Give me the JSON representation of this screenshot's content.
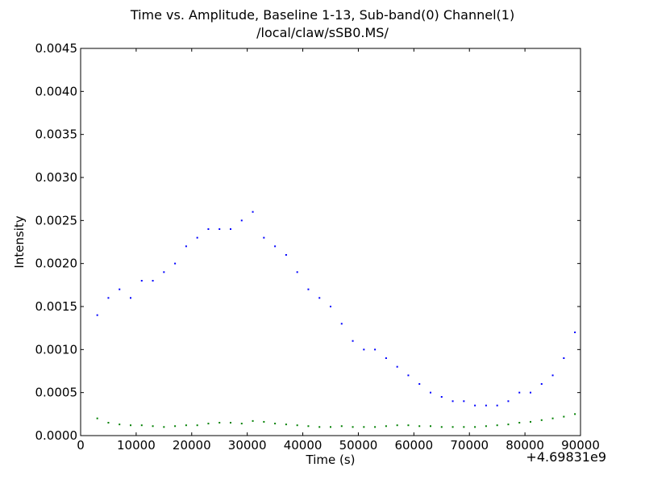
{
  "chart_data": {
    "type": "scatter",
    "title": "Time vs. Amplitude, Baseline 1-13, Sub-band(0)  Channel(1)",
    "subtitle": "/local/claw/sSB0.MS/",
    "xlabel": "Time (s)",
    "ylabel": "Intensity",
    "x_offset_label": "+4.69831e9",
    "xlim": [
      0,
      90000
    ],
    "ylim": [
      0,
      0.0045
    ],
    "x_ticks": [
      "0",
      "10000",
      "20000",
      "30000",
      "40000",
      "50000",
      "60000",
      "70000",
      "80000",
      "90000"
    ],
    "y_ticks": [
      "0.0000",
      "0.0005",
      "0.0010",
      "0.0015",
      "0.0020",
      "0.0025",
      "0.0030",
      "0.0035",
      "0.0040",
      "0.0045"
    ],
    "grid": false,
    "series": [
      {
        "color": "#0000ff",
        "x": [
          3000,
          5000,
          7000,
          9000,
          11000,
          13000,
          15000,
          17000,
          19000,
          21000,
          23000,
          25000,
          27000,
          29000,
          31000,
          33000,
          35000,
          37000,
          39000,
          41000,
          43000,
          45000,
          47000,
          49000,
          51000,
          53000,
          55000,
          57000,
          59000,
          61000,
          63000,
          65000,
          67000,
          69000,
          71000,
          73000,
          75000,
          77000,
          79000,
          81000,
          83000,
          85000,
          87000,
          89000
        ],
        "y": [
          0.0014,
          0.0016,
          0.0017,
          0.0016,
          0.0018,
          0.0018,
          0.0019,
          0.002,
          0.0022,
          0.0023,
          0.0024,
          0.0024,
          0.0024,
          0.0025,
          0.0026,
          0.0023,
          0.0022,
          0.0021,
          0.0019,
          0.0017,
          0.0016,
          0.0015,
          0.0013,
          0.0011,
          0.001,
          0.001,
          0.0009,
          0.0008,
          0.0007,
          0.0006,
          0.0005,
          0.00045,
          0.0004,
          0.0004,
          0.00035,
          0.00035,
          0.00035,
          0.0004,
          0.0005,
          0.0005,
          0.0006,
          0.0007,
          0.0009,
          0.0012
        ]
      },
      {
        "color": "#008000",
        "x": [
          3000,
          5000,
          7000,
          9000,
          11000,
          13000,
          15000,
          17000,
          19000,
          21000,
          23000,
          25000,
          27000,
          29000,
          31000,
          33000,
          35000,
          37000,
          39000,
          41000,
          43000,
          45000,
          47000,
          49000,
          51000,
          53000,
          55000,
          57000,
          59000,
          61000,
          63000,
          65000,
          67000,
          69000,
          71000,
          73000,
          75000,
          77000,
          79000,
          81000,
          83000,
          85000,
          87000,
          89000
        ],
        "y": [
          0.0002,
          0.00015,
          0.00013,
          0.00012,
          0.00012,
          0.00011,
          0.0001,
          0.00011,
          0.00012,
          0.00012,
          0.00014,
          0.00015,
          0.00015,
          0.00014,
          0.00017,
          0.00016,
          0.00014,
          0.00013,
          0.00012,
          0.00011,
          0.0001,
          0.0001,
          0.00011,
          0.0001,
          0.0001,
          0.0001,
          0.00011,
          0.00012,
          0.00012,
          0.00011,
          0.00011,
          0.0001,
          0.0001,
          0.0001,
          0.0001,
          0.00011,
          0.00012,
          0.00013,
          0.00015,
          0.00016,
          0.00018,
          0.0002,
          0.00022,
          0.00025
        ]
      }
    ]
  }
}
